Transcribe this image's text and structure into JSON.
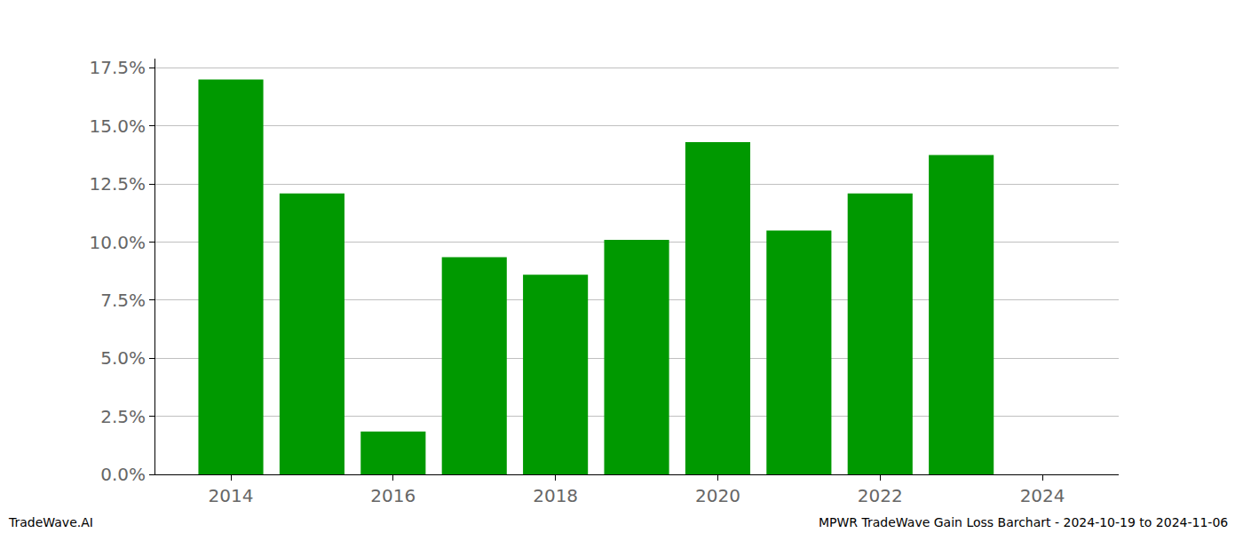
{
  "chart_data": {
    "type": "bar",
    "x": [
      2014,
      2015,
      2016,
      2017,
      2018,
      2019,
      2020,
      2021,
      2022,
      2023
    ],
    "values": [
      17.0,
      12.1,
      1.85,
      9.35,
      8.6,
      10.1,
      14.3,
      10.5,
      12.1,
      13.75
    ],
    "color": "#009900",
    "xlim": [
      2013.07,
      2024.94
    ],
    "xticks": [
      2014,
      2016,
      2018,
      2020,
      2022,
      2024
    ],
    "ylim": [
      0,
      17.9
    ],
    "yticks": [
      {
        "value": 0,
        "label": "0.0%"
      },
      {
        "value": 2.5,
        "label": "2.5%"
      },
      {
        "value": 5,
        "label": "5.0%"
      },
      {
        "value": 7.5,
        "label": "7.5%"
      },
      {
        "value": 10,
        "label": "10.0%"
      },
      {
        "value": 12.5,
        "label": "12.5%"
      },
      {
        "value": 15,
        "label": "15.0%"
      },
      {
        "value": 17.5,
        "label": "17.5%"
      }
    ],
    "grid": true,
    "annotations": [
      "TradeWave.AI",
      "MPWR TradeWave Gain Loss Barchart - 2024-10-19 to 2024-11-06"
    ]
  }
}
